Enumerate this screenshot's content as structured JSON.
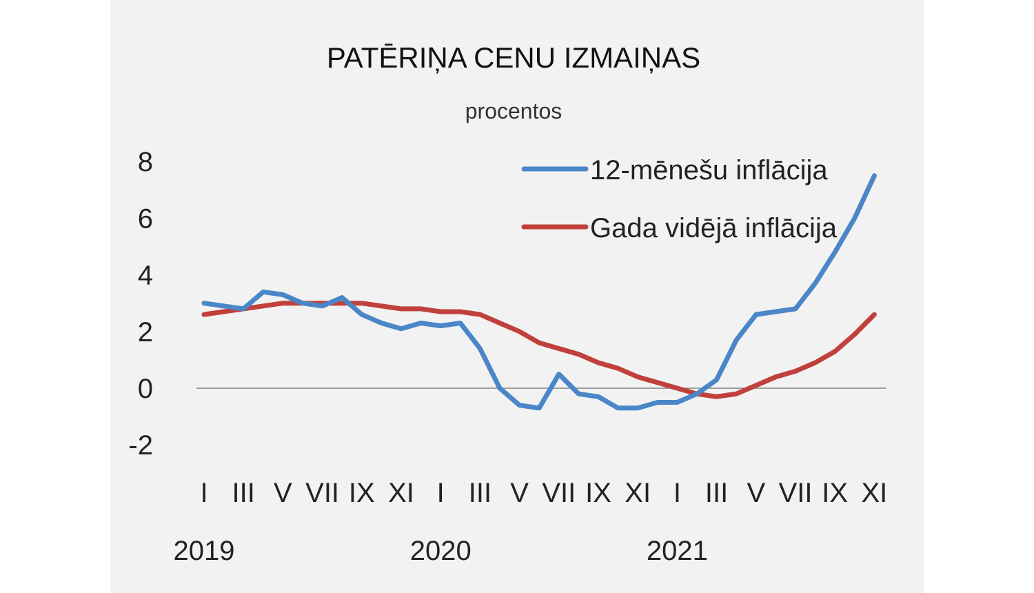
{
  "chart_data": {
    "type": "line",
    "title": "PATĒRIŅA CENU IZMAIŅAS",
    "subtitle": "procentos",
    "xlabel": "",
    "ylabel": "",
    "ylim": [
      -2,
      8
    ],
    "yticks": [
      "8",
      "6",
      "4",
      "2",
      "0",
      "-2"
    ],
    "month_labels": [
      "I",
      "III",
      "V",
      "VII",
      "IX",
      "XI",
      "I",
      "III",
      "V",
      "VII",
      "IX",
      "XI",
      "I",
      "III",
      "V",
      "VII",
      "IX",
      "XI"
    ],
    "year_labels": [
      "2019",
      "2020",
      "2021"
    ],
    "legend_position": "top-right",
    "grid": false,
    "x_months": 35,
    "series": [
      {
        "name": "12-mēnešu inflācija",
        "color": "#4a86c8",
        "values": [
          3.0,
          2.9,
          2.8,
          3.4,
          3.3,
          3.0,
          2.9,
          3.2,
          2.6,
          2.3,
          2.1,
          2.3,
          2.2,
          2.3,
          1.4,
          0.0,
          -0.6,
          -0.7,
          0.5,
          -0.2,
          -0.3,
          -0.7,
          -0.7,
          -0.5,
          -0.5,
          -0.2,
          0.3,
          1.7,
          2.6,
          2.7,
          2.8,
          3.7,
          4.8,
          6.0,
          7.5
        ]
      },
      {
        "name": "Gada vidējā inflācija",
        "color": "#c0403c",
        "values": [
          2.6,
          2.7,
          2.8,
          2.9,
          3.0,
          3.0,
          3.0,
          3.0,
          3.0,
          2.9,
          2.8,
          2.8,
          2.7,
          2.7,
          2.6,
          2.3,
          2.0,
          1.6,
          1.4,
          1.2,
          0.9,
          0.7,
          0.4,
          0.2,
          0.0,
          -0.2,
          -0.3,
          -0.2,
          0.1,
          0.4,
          0.6,
          0.9,
          1.3,
          1.9,
          2.6
        ]
      }
    ]
  }
}
